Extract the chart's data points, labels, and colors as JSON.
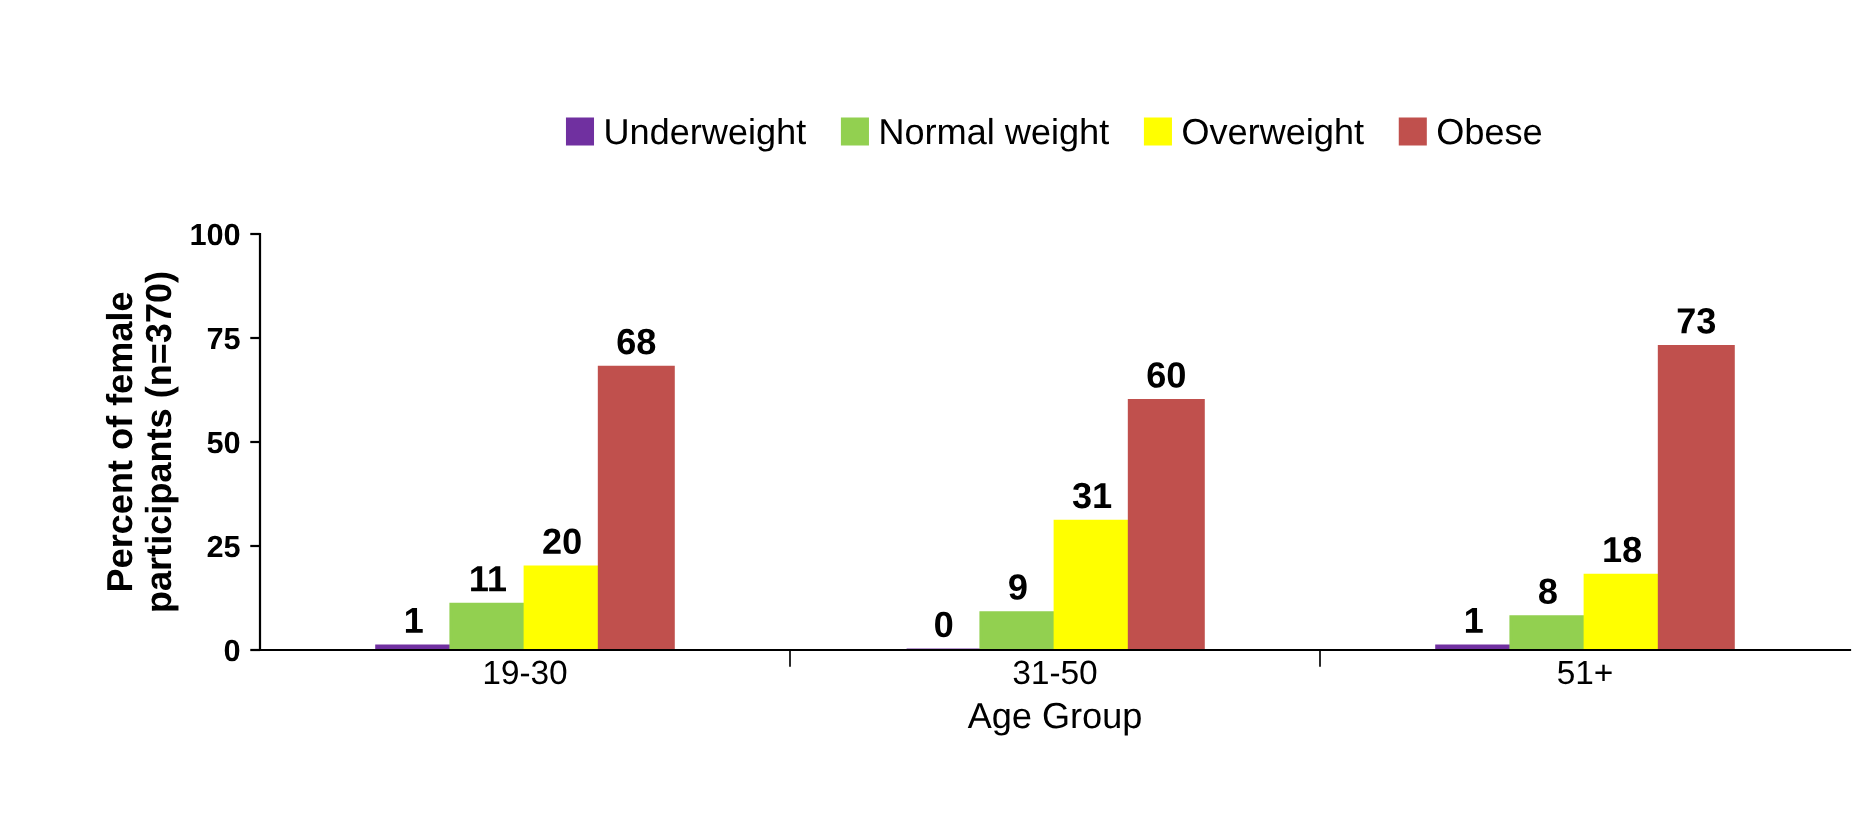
{
  "chart_data": {
    "type": "bar",
    "xlabel": "Age Group",
    "ylabel": "Percent of female\nparticipants (n=370)",
    "categories": [
      "19-30",
      "31-50",
      "51+"
    ],
    "series": [
      {
        "name": "Underweight",
        "color": "#7030a0",
        "values": [
          1,
          0,
          1
        ]
      },
      {
        "name": "Normal weight",
        "color": "#92d050",
        "values": [
          11,
          9,
          8
        ]
      },
      {
        "name": "Overweight",
        "color": "#ffff00",
        "values": [
          20,
          31,
          18
        ]
      },
      {
        "name": "Obese",
        "color": "#c0504d",
        "values": [
          68,
          60,
          73
        ]
      }
    ],
    "ylim": [
      0,
      100
    ],
    "yticks": [
      0,
      25,
      50,
      75,
      100
    ],
    "data_labels": true,
    "legend": "top",
    "grid": false
  }
}
